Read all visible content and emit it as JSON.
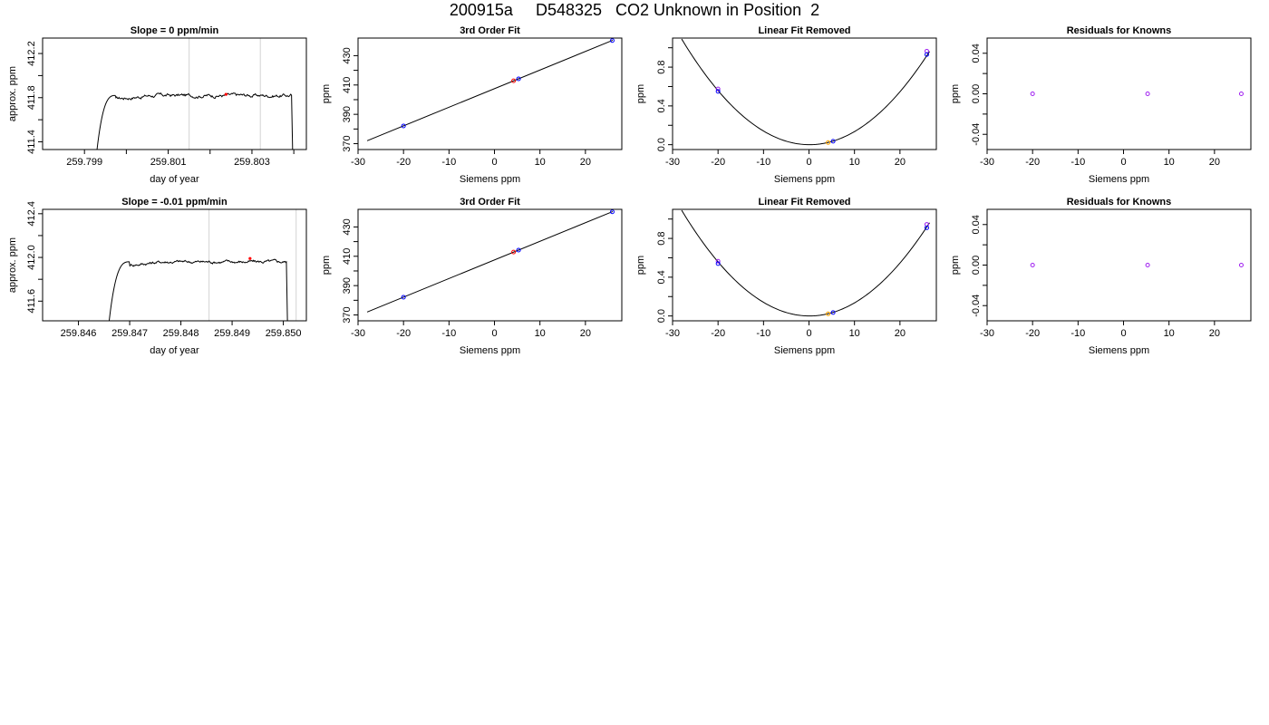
{
  "page_title": "200915a     D548325   CO2 Unknown in Position  2",
  "colors": {
    "trace": "#000000",
    "mark_line": "#d3d3d3",
    "red": "#ff0000",
    "blue": "#0000ff",
    "purple": "#a020f0",
    "orange": "#ffa500"
  },
  "chart_data": [
    {
      "type": "line",
      "row": 0,
      "col": 0,
      "title": "Slope =  0  ppm/min",
      "xlabel": "day of year",
      "ylabel": "approx. ppm",
      "xlim": [
        259.798,
        259.8043
      ],
      "ylim": [
        411.33,
        412.34
      ],
      "xticks": [
        259.799,
        259.8,
        259.801,
        259.802,
        259.803,
        259.804
      ],
      "xtick_labels": [
        "259.799",
        "",
        "259.801",
        "",
        "259.803",
        ""
      ],
      "yticks": [
        411.4,
        411.6,
        411.8,
        412.0,
        412.2
      ],
      "ytick_labels": [
        "411.4",
        "",
        "411.8",
        "",
        "412.2"
      ],
      "vlines": [
        259.8015,
        259.8032
      ],
      "trace": {
        "x_start": 259.7993,
        "x_end": 259.804,
        "rise_start_y": 411.33,
        "rise_end_x": 259.79975,
        "plateau_y": 411.82,
        "noise": 0.014
      },
      "marker": {
        "x": 259.80238,
        "y": 411.83,
        "color": "red"
      }
    },
    {
      "type": "line",
      "row": 1,
      "col": 0,
      "title": "Slope =  -0.01  ppm/min",
      "xlabel": "day of year",
      "ylabel": "approx. ppm",
      "xlim": [
        259.8453,
        259.85045
      ],
      "ylim": [
        411.42,
        412.44
      ],
      "xticks": [
        259.846,
        259.847,
        259.848,
        259.849,
        259.85
      ],
      "xtick_labels": [
        "259.846",
        "259.847",
        "259.848",
        "259.849",
        "259.850"
      ],
      "yticks": [
        411.6,
        411.8,
        412.0,
        412.2,
        412.4
      ],
      "ytick_labels": [
        "411.6",
        "",
        "412.0",
        "",
        "412.4"
      ],
      "vlines": [
        259.84855,
        259.85025
      ],
      "trace": {
        "x_start": 259.8466,
        "x_end": 259.8501,
        "rise_start_y": 411.42,
        "rise_end_x": 259.847,
        "plateau_y": 411.96,
        "noise": 0.012
      },
      "marker": {
        "x": 259.84935,
        "y": 411.99,
        "color": "red"
      }
    },
    {
      "type": "scatter",
      "row": 0,
      "col": 1,
      "title": "3rd Order Fit",
      "xlabel": "Siemens ppm",
      "ylabel": "ppm",
      "xlim": [
        -30,
        28
      ],
      "ylim": [
        366,
        442
      ],
      "xticks": [
        -30,
        -20,
        -10,
        0,
        10,
        20
      ],
      "xtick_labels": [
        "-30",
        "-20",
        "-10",
        "0",
        "10",
        "20"
      ],
      "yticks": [
        370,
        380,
        390,
        400,
        410,
        420,
        430
      ],
      "ytick_labels": [
        "370",
        "",
        "390",
        "",
        "410",
        "",
        "430"
      ],
      "fit_line": {
        "x1": -28,
        "y1": 372.0,
        "x2": 26,
        "y2": 440.5
      },
      "points": [
        {
          "x": -20.0,
          "y": 382.1,
          "color": "blue"
        },
        {
          "x": 5.3,
          "y": 414.2,
          "color": "blue"
        },
        {
          "x": 25.9,
          "y": 440.3,
          "color": "blue"
        },
        {
          "x": 4.2,
          "y": 412.9,
          "color": "red"
        }
      ]
    },
    {
      "type": "scatter",
      "row": 1,
      "col": 1,
      "title": "3rd Order Fit",
      "xlabel": "Siemens ppm",
      "ylabel": "ppm",
      "xlim": [
        -30,
        28
      ],
      "ylim": [
        366,
        442
      ],
      "xticks": [
        -30,
        -20,
        -10,
        0,
        10,
        20
      ],
      "xtick_labels": [
        "-30",
        "-20",
        "-10",
        "0",
        "10",
        "20"
      ],
      "yticks": [
        370,
        380,
        390,
        400,
        410,
        420,
        430
      ],
      "ytick_labels": [
        "370",
        "",
        "390",
        "",
        "410",
        "",
        "430"
      ],
      "fit_line": {
        "x1": -28,
        "y1": 372.0,
        "x2": 26,
        "y2": 440.5
      },
      "points": [
        {
          "x": -20.0,
          "y": 382.1,
          "color": "blue"
        },
        {
          "x": 5.3,
          "y": 414.2,
          "color": "blue"
        },
        {
          "x": 25.9,
          "y": 440.3,
          "color": "blue"
        },
        {
          "x": 4.2,
          "y": 412.9,
          "color": "red"
        }
      ]
    },
    {
      "type": "scatter",
      "row": 0,
      "col": 2,
      "title": "Linear Fit Removed",
      "xlabel": "Siemens ppm",
      "ylabel": "ppm",
      "xlim": [
        -30,
        28
      ],
      "ylim": [
        -0.05,
        1.1
      ],
      "xticks": [
        -30,
        -20,
        -10,
        0,
        10,
        20
      ],
      "xtick_labels": [
        "-30",
        "-20",
        "-10",
        "0",
        "10",
        "20"
      ],
      "yticks": [
        0.0,
        0.2,
        0.4,
        0.6,
        0.8,
        1.0
      ],
      "ytick_labels": [
        "0.0",
        "",
        "0.4",
        "",
        "0.8",
        ""
      ],
      "curve": {
        "a": 0.00138,
        "b": -0.00029,
        "x_from": -28,
        "x_to": 26.5
      },
      "points": [
        {
          "x": -20.0,
          "y": 0.575,
          "color": "purple"
        },
        {
          "x": -20.0,
          "y": 0.55,
          "color": "blue"
        },
        {
          "x": 5.3,
          "y": 0.035,
          "color": "blue"
        },
        {
          "x": 25.9,
          "y": 0.965,
          "color": "purple"
        },
        {
          "x": 25.9,
          "y": 0.93,
          "color": "blue"
        },
        {
          "x": 4.2,
          "y": 0.022,
          "color": "orange"
        }
      ]
    },
    {
      "type": "scatter",
      "row": 1,
      "col": 2,
      "title": "Linear Fit Removed",
      "xlabel": "Siemens ppm",
      "ylabel": "ppm",
      "xlim": [
        -30,
        28
      ],
      "ylim": [
        -0.05,
        1.1
      ],
      "xticks": [
        -30,
        -20,
        -10,
        0,
        10,
        20
      ],
      "xtick_labels": [
        "-30",
        "-20",
        "-10",
        "0",
        "10",
        "20"
      ],
      "yticks": [
        0.0,
        0.2,
        0.4,
        0.6,
        0.8,
        1.0
      ],
      "ytick_labels": [
        "0.0",
        "",
        "0.4",
        "",
        "0.8",
        ""
      ],
      "curve": {
        "a": 0.00138,
        "b": -0.00029,
        "x_from": -28,
        "x_to": 26.5
      },
      "points": [
        {
          "x": -20.0,
          "y": 0.565,
          "color": "purple"
        },
        {
          "x": -20.0,
          "y": 0.54,
          "color": "blue"
        },
        {
          "x": 5.3,
          "y": 0.035,
          "color": "blue"
        },
        {
          "x": 25.9,
          "y": 0.945,
          "color": "purple"
        },
        {
          "x": 25.9,
          "y": 0.91,
          "color": "blue"
        },
        {
          "x": 4.2,
          "y": 0.022,
          "color": "orange"
        }
      ]
    },
    {
      "type": "scatter",
      "row": 0,
      "col": 3,
      "title": "Residuals for Knowns",
      "xlabel": "Siemens ppm",
      "ylabel": "ppm",
      "xlim": [
        -30,
        28
      ],
      "ylim": [
        -0.055,
        0.055
      ],
      "xticks": [
        -30,
        -20,
        -10,
        0,
        10,
        20
      ],
      "xtick_labels": [
        "-30",
        "-20",
        "-10",
        "0",
        "10",
        "20"
      ],
      "yticks": [
        -0.04,
        -0.02,
        0.0,
        0.02,
        0.04
      ],
      "ytick_labels": [
        "-0.04",
        "",
        "0.00",
        "",
        "0.04"
      ],
      "points": [
        {
          "x": -20.0,
          "y": 0.0,
          "color": "purple"
        },
        {
          "x": 5.3,
          "y": 0.0,
          "color": "purple"
        },
        {
          "x": 25.9,
          "y": 0.0,
          "color": "purple"
        }
      ]
    },
    {
      "type": "scatter",
      "row": 1,
      "col": 3,
      "title": "Residuals for Knowns",
      "xlabel": "Siemens ppm",
      "ylabel": "ppm",
      "xlim": [
        -30,
        28
      ],
      "ylim": [
        -0.055,
        0.055
      ],
      "xticks": [
        -30,
        -20,
        -10,
        0,
        10,
        20
      ],
      "xtick_labels": [
        "-30",
        "-20",
        "-10",
        "0",
        "10",
        "20"
      ],
      "yticks": [
        -0.04,
        -0.02,
        0.0,
        0.02,
        0.04
      ],
      "ytick_labels": [
        "-0.04",
        "",
        "0.00",
        "",
        "0.04"
      ],
      "points": [
        {
          "x": -20.0,
          "y": 0.0,
          "color": "purple"
        },
        {
          "x": 5.3,
          "y": 0.0,
          "color": "purple"
        },
        {
          "x": 25.9,
          "y": 0.0,
          "color": "purple"
        }
      ]
    }
  ]
}
